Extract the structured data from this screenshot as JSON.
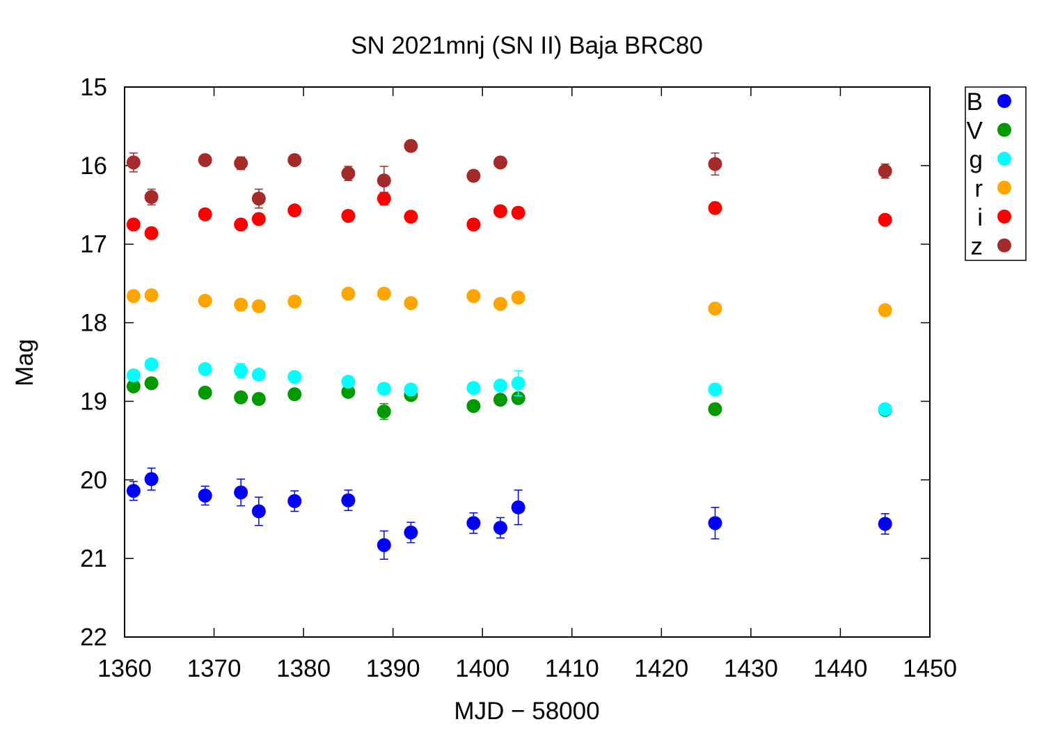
{
  "chart_data": {
    "type": "scatter",
    "title": "SN 2021mnj (SN II) Baja BRC80",
    "xlabel": "MJD − 58000",
    "ylabel": "Mag",
    "xlim": [
      1360,
      1450
    ],
    "ylim": [
      22,
      15
    ],
    "y_inverted": true,
    "x_ticks": [
      "1360",
      "1370",
      "1380",
      "1390",
      "1400",
      "1410",
      "1420",
      "1430",
      "1440",
      "1450"
    ],
    "y_ticks": [
      "15",
      "16",
      "17",
      "18",
      "19",
      "20",
      "21",
      "22"
    ],
    "grid": false,
    "legend_position": "outside-top-right",
    "series": [
      {
        "name": "B",
        "color": "#0000ff",
        "points": [
          {
            "x": 1361.0,
            "y": 20.14,
            "err": 0.12
          },
          {
            "x": 1363.0,
            "y": 19.99,
            "err": 0.14
          },
          {
            "x": 1369.0,
            "y": 20.2,
            "err": 0.12
          },
          {
            "x": 1373.0,
            "y": 20.16,
            "err": 0.17
          },
          {
            "x": 1375.0,
            "y": 20.4,
            "err": 0.18
          },
          {
            "x": 1379.0,
            "y": 20.27,
            "err": 0.13
          },
          {
            "x": 1385.0,
            "y": 20.26,
            "err": 0.13
          },
          {
            "x": 1389.0,
            "y": 20.83,
            "err": 0.18
          },
          {
            "x": 1392.0,
            "y": 20.67,
            "err": 0.13
          },
          {
            "x": 1399.0,
            "y": 20.55,
            "err": 0.13
          },
          {
            "x": 1402.0,
            "y": 20.61,
            "err": 0.13
          },
          {
            "x": 1404.0,
            "y": 20.35,
            "err": 0.22
          },
          {
            "x": 1426.0,
            "y": 20.55,
            "err": 0.2
          },
          {
            "x": 1445.0,
            "y": 20.56,
            "err": 0.13
          }
        ]
      },
      {
        "name": "V",
        "color": "#009900",
        "points": [
          {
            "x": 1361.0,
            "y": 18.81,
            "err": 0.05
          },
          {
            "x": 1363.0,
            "y": 18.77,
            "err": 0.04
          },
          {
            "x": 1369.0,
            "y": 18.89,
            "err": 0.04
          },
          {
            "x": 1373.0,
            "y": 18.95,
            "err": 0.04
          },
          {
            "x": 1375.0,
            "y": 18.97,
            "err": 0.04
          },
          {
            "x": 1379.0,
            "y": 18.91,
            "err": 0.04
          },
          {
            "x": 1385.0,
            "y": 18.88,
            "err": 0.04
          },
          {
            "x": 1389.0,
            "y": 19.13,
            "err": 0.1
          },
          {
            "x": 1392.0,
            "y": 18.92,
            "err": 0.06
          },
          {
            "x": 1399.0,
            "y": 19.06,
            "err": 0.05
          },
          {
            "x": 1402.0,
            "y": 18.98,
            "err": 0.05
          },
          {
            "x": 1404.0,
            "y": 18.96,
            "err": 0.06
          },
          {
            "x": 1426.0,
            "y": 19.1,
            "err": 0.06
          },
          {
            "x": 1445.0,
            "y": 19.11,
            "err": 0.04
          }
        ]
      },
      {
        "name": "g",
        "color": "#00ffff",
        "points": [
          {
            "x": 1361.0,
            "y": 18.67,
            "err": 0.05
          },
          {
            "x": 1363.0,
            "y": 18.53,
            "err": 0.04
          },
          {
            "x": 1369.0,
            "y": 18.59,
            "err": 0.04
          },
          {
            "x": 1373.0,
            "y": 18.61,
            "err": 0.09
          },
          {
            "x": 1375.0,
            "y": 18.66,
            "err": 0.06
          },
          {
            "x": 1379.0,
            "y": 18.69,
            "err": 0.04
          },
          {
            "x": 1385.0,
            "y": 18.75,
            "err": 0.05
          },
          {
            "x": 1389.0,
            "y": 18.84,
            "err": 0.05
          },
          {
            "x": 1392.0,
            "y": 18.85,
            "err": 0.05
          },
          {
            "x": 1399.0,
            "y": 18.83,
            "err": 0.05
          },
          {
            "x": 1402.0,
            "y": 18.8,
            "err": 0.05
          },
          {
            "x": 1404.0,
            "y": 18.77,
            "err": 0.16
          },
          {
            "x": 1426.0,
            "y": 18.85,
            "err": 0.04
          },
          {
            "x": 1445.0,
            "y": 19.1,
            "err": 0.04
          }
        ]
      },
      {
        "name": "r",
        "color": "#ffa500",
        "points": [
          {
            "x": 1361.0,
            "y": 17.66,
            "err": 0.03
          },
          {
            "x": 1363.0,
            "y": 17.65,
            "err": 0.03
          },
          {
            "x": 1369.0,
            "y": 17.72,
            "err": 0.03
          },
          {
            "x": 1373.0,
            "y": 17.77,
            "err": 0.03
          },
          {
            "x": 1375.0,
            "y": 17.79,
            "err": 0.03
          },
          {
            "x": 1379.0,
            "y": 17.73,
            "err": 0.03
          },
          {
            "x": 1385.0,
            "y": 17.63,
            "err": 0.03
          },
          {
            "x": 1389.0,
            "y": 17.63,
            "err": 0.03
          },
          {
            "x": 1392.0,
            "y": 17.75,
            "err": 0.03
          },
          {
            "x": 1399.0,
            "y": 17.66,
            "err": 0.03
          },
          {
            "x": 1402.0,
            "y": 17.76,
            "err": 0.03
          },
          {
            "x": 1404.0,
            "y": 17.68,
            "err": 0.03
          },
          {
            "x": 1426.0,
            "y": 17.82,
            "err": 0.03
          },
          {
            "x": 1445.0,
            "y": 17.84,
            "err": 0.03
          }
        ]
      },
      {
        "name": "i",
        "color": "#ff0000",
        "points": [
          {
            "x": 1361.0,
            "y": 16.75,
            "err": 0.06
          },
          {
            "x": 1363.0,
            "y": 16.86,
            "err": 0.04
          },
          {
            "x": 1369.0,
            "y": 16.62,
            "err": 0.04
          },
          {
            "x": 1373.0,
            "y": 16.75,
            "err": 0.06
          },
          {
            "x": 1375.0,
            "y": 16.68,
            "err": 0.04
          },
          {
            "x": 1379.0,
            "y": 16.57,
            "err": 0.04
          },
          {
            "x": 1385.0,
            "y": 16.64,
            "err": 0.04
          },
          {
            "x": 1389.0,
            "y": 16.42,
            "err": 0.08
          },
          {
            "x": 1392.0,
            "y": 16.65,
            "err": 0.04
          },
          {
            "x": 1399.0,
            "y": 16.75,
            "err": 0.04
          },
          {
            "x": 1402.0,
            "y": 16.58,
            "err": 0.05
          },
          {
            "x": 1404.0,
            "y": 16.6,
            "err": 0.07
          },
          {
            "x": 1426.0,
            "y": 16.54,
            "err": 0.04
          },
          {
            "x": 1445.0,
            "y": 16.69,
            "err": 0.04
          }
        ]
      },
      {
        "name": "z",
        "color": "#a52a2a",
        "points": [
          {
            "x": 1361.0,
            "y": 15.96,
            "err": 0.12
          },
          {
            "x": 1363.0,
            "y": 16.4,
            "err": 0.1
          },
          {
            "x": 1369.0,
            "y": 15.93,
            "err": 0.06
          },
          {
            "x": 1373.0,
            "y": 15.97,
            "err": 0.08
          },
          {
            "x": 1375.0,
            "y": 16.42,
            "err": 0.12
          },
          {
            "x": 1379.0,
            "y": 15.93,
            "err": 0.06
          },
          {
            "x": 1385.0,
            "y": 16.1,
            "err": 0.09
          },
          {
            "x": 1389.0,
            "y": 16.19,
            "err": 0.18
          },
          {
            "x": 1392.0,
            "y": 15.75,
            "err": 0.05
          },
          {
            "x": 1399.0,
            "y": 16.13,
            "err": 0.07
          },
          {
            "x": 1402.0,
            "y": 15.96,
            "err": 0.06
          },
          {
            "x": 1426.0,
            "y": 15.98,
            "err": 0.14
          },
          {
            "x": 1445.0,
            "y": 16.07,
            "err": 0.09
          }
        ]
      }
    ]
  }
}
